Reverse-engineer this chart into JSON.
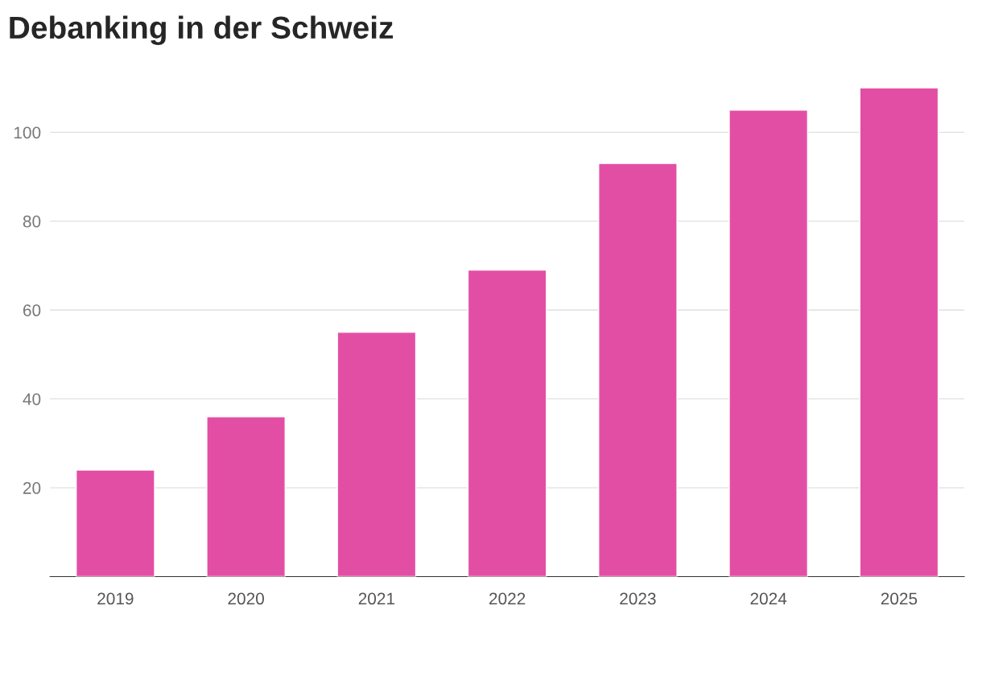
{
  "chart_data": {
    "type": "bar",
    "title": "Debanking in der Schweiz",
    "categories": [
      "2019",
      "2020",
      "2021",
      "2022",
      "2023",
      "2024",
      "2025"
    ],
    "values": [
      24,
      36,
      55,
      69,
      93,
      105,
      110
    ],
    "color": "#e34ea5",
    "ylim": [
      0,
      110
    ],
    "yticks": [
      20,
      40,
      60,
      80,
      100
    ],
    "grid": "y"
  }
}
